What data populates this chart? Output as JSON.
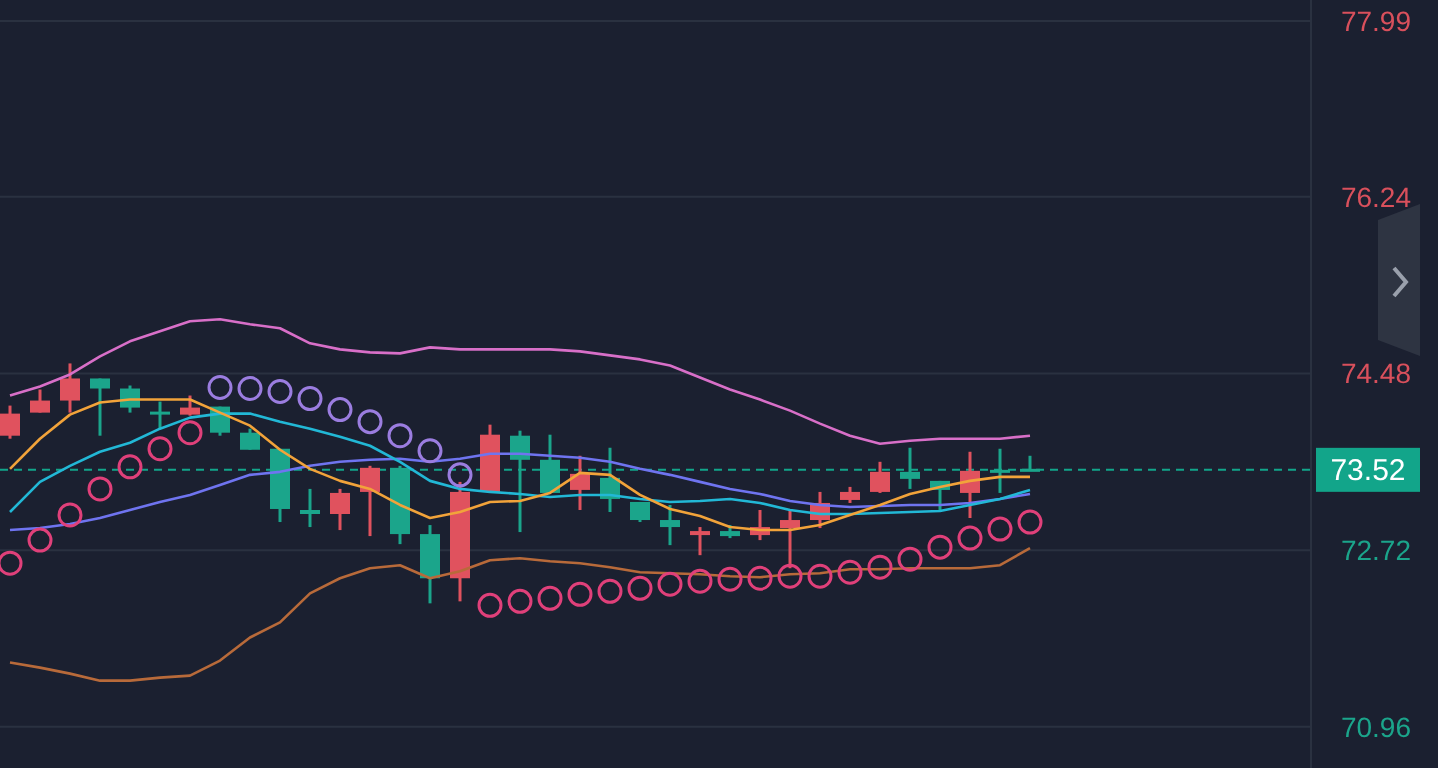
{
  "chart_data": {
    "type": "candlestick",
    "categories": [
      null,
      null,
      null,
      null,
      null,
      null,
      null,
      null,
      null,
      null,
      null,
      null,
      null,
      null,
      null,
      null,
      null,
      null,
      null,
      null,
      null,
      null,
      null,
      null,
      null,
      null,
      null,
      null,
      null,
      null,
      null,
      null,
      null,
      null,
      null
    ],
    "ohlc": [
      [
        73.86,
        74.16,
        73.83,
        74.08
      ],
      [
        74.09,
        74.32,
        74.09,
        74.21
      ],
      [
        74.21,
        74.58,
        74.09,
        74.43
      ],
      [
        74.43,
        74.43,
        73.86,
        74.33
      ],
      [
        74.33,
        74.36,
        74.09,
        74.14
      ],
      [
        74.1,
        74.2,
        73.93,
        74.08
      ],
      [
        74.07,
        74.26,
        74.06,
        74.14
      ],
      [
        74.15,
        74.15,
        73.86,
        73.89
      ],
      [
        73.89,
        73.93,
        73.72,
        73.72
      ],
      [
        73.73,
        73.73,
        73.0,
        73.13
      ],
      [
        73.12,
        73.33,
        72.95,
        73.08
      ],
      [
        73.08,
        73.33,
        72.92,
        73.29
      ],
      [
        73.3,
        73.56,
        72.86,
        73.54
      ],
      [
        73.54,
        73.56,
        72.78,
        72.88
      ],
      [
        72.88,
        72.97,
        72.19,
        72.44
      ],
      [
        72.44,
        73.4,
        72.21,
        73.3
      ],
      [
        73.3,
        73.97,
        73.3,
        73.87
      ],
      [
        73.86,
        73.91,
        72.9,
        73.62
      ],
      [
        73.62,
        73.87,
        73.29,
        73.29
      ],
      [
        73.32,
        73.66,
        73.12,
        73.48
      ],
      [
        73.44,
        73.74,
        73.1,
        73.23
      ],
      [
        73.2,
        73.2,
        73.0,
        73.02
      ],
      [
        73.02,
        73.17,
        72.77,
        72.95
      ],
      [
        72.87,
        72.95,
        72.67,
        72.91
      ],
      [
        72.91,
        72.97,
        72.84,
        72.86
      ],
      [
        72.87,
        73.12,
        72.82,
        72.95
      ],
      [
        72.94,
        73.12,
        72.54,
        73.02
      ],
      [
        73.02,
        73.3,
        72.94,
        73.19
      ],
      [
        73.22,
        73.35,
        73.19,
        73.3
      ],
      [
        73.3,
        73.6,
        73.29,
        73.5
      ],
      [
        73.5,
        73.74,
        73.33,
        73.43
      ],
      [
        73.41,
        73.41,
        73.1,
        73.32
      ],
      [
        73.29,
        73.7,
        73.04,
        73.51
      ],
      [
        73.52,
        73.73,
        73.29,
        73.49
      ],
      [
        73.53,
        73.66,
        73.52,
        73.52
      ]
    ],
    "colors": [
      "#e0525e",
      "#e0525e",
      "#e0525e",
      "#1ba58b",
      "#1ba58b",
      "#1ba58b",
      "#e0525e",
      "#1ba58b",
      "#1ba58b",
      "#1ba58b",
      "#1ba58b",
      "#e0525e",
      "#e0525e",
      "#1ba58b",
      "#1ba58b",
      "#e0525e",
      "#e0525e",
      "#1ba58b",
      "#1ba58b",
      "#e0525e",
      "#1ba58b",
      "#1ba58b",
      "#1ba58b",
      "#e0525e",
      "#1ba58b",
      "#e0525e",
      "#e0525e",
      "#e0525e",
      "#e0525e",
      "#e0525e",
      "#1ba58b",
      "#1ba58b",
      "#e0525e",
      "#1ba58b",
      "#1ba58b"
    ],
    "series": [
      {
        "type": "line",
        "color": "#d86fc8",
        "values": [
          74.26,
          74.35,
          74.47,
          74.65,
          74.8,
          74.9,
          75.0,
          75.02,
          74.97,
          74.93,
          74.78,
          74.72,
          74.69,
          74.68,
          74.74,
          74.72,
          74.72,
          74.72,
          74.72,
          74.7,
          74.66,
          74.62,
          74.56,
          74.44,
          74.32,
          74.22,
          74.11,
          73.98,
          73.86,
          73.78,
          73.81,
          73.83,
          73.83,
          73.83,
          73.86
        ]
      },
      {
        "type": "line",
        "color": "#b86a3a",
        "values": [
          71.6,
          71.55,
          71.49,
          71.42,
          71.42,
          71.45,
          71.47,
          71.62,
          71.85,
          72.0,
          72.29,
          72.44,
          72.54,
          72.57,
          72.44,
          72.51,
          72.62,
          72.64,
          72.61,
          72.59,
          72.55,
          72.5,
          72.49,
          72.48,
          72.46,
          72.45,
          72.48,
          72.49,
          72.53,
          72.53,
          72.54,
          72.54,
          72.54,
          72.57,
          72.74
        ]
      },
      {
        "type": "line",
        "color": "#6f74f0",
        "values": [
          72.92,
          72.94,
          72.98,
          73.04,
          73.12,
          73.2,
          73.27,
          73.37,
          73.47,
          73.5,
          73.56,
          73.6,
          73.62,
          73.63,
          73.6,
          73.63,
          73.68,
          73.68,
          73.66,
          73.64,
          73.6,
          73.53,
          73.47,
          73.4,
          73.33,
          73.28,
          73.21,
          73.17,
          73.15,
          73.16,
          73.17,
          73.17,
          73.19,
          73.23,
          73.28
        ]
      },
      {
        "type": "line",
        "color": "#22b8d6",
        "values": [
          73.1,
          73.4,
          73.56,
          73.7,
          73.79,
          73.93,
          74.04,
          74.08,
          74.08,
          74.0,
          73.93,
          73.85,
          73.76,
          73.6,
          73.41,
          73.33,
          73.3,
          73.28,
          73.25,
          73.27,
          73.27,
          73.23,
          73.2,
          73.21,
          73.23,
          73.19,
          73.12,
          73.08,
          73.08,
          73.09,
          73.1,
          73.11,
          73.17,
          73.23,
          73.32
        ]
      },
      {
        "type": "line",
        "color": "#f2a33a",
        "values": [
          73.53,
          73.83,
          74.07,
          74.19,
          74.22,
          74.22,
          74.22,
          74.09,
          73.96,
          73.72,
          73.53,
          73.41,
          73.33,
          73.17,
          73.04,
          73.1,
          73.2,
          73.21,
          73.29,
          73.49,
          73.47,
          73.27,
          73.13,
          73.06,
          72.95,
          72.92,
          72.92,
          72.97,
          73.07,
          73.17,
          73.28,
          73.35,
          73.41,
          73.45,
          73.45
        ]
      },
      {
        "type": "scatter",
        "marker": "circle",
        "color": "#9b7de0",
        "values": [
          null,
          null,
          null,
          null,
          null,
          null,
          null,
          74.34,
          74.33,
          74.3,
          74.23,
          74.12,
          74.0,
          73.86,
          73.71,
          73.47,
          null,
          null,
          null,
          null,
          null,
          null,
          null,
          null,
          null,
          null,
          null,
          null,
          null,
          null,
          null,
          null,
          null,
          null,
          null
        ]
      },
      {
        "type": "scatter",
        "marker": "circle",
        "color": "#e0407a",
        "values": [
          72.59,
          72.82,
          73.07,
          73.33,
          73.55,
          73.73,
          73.89,
          null,
          null,
          null,
          null,
          null,
          null,
          null,
          null,
          null,
          72.17,
          72.21,
          72.24,
          72.28,
          72.31,
          72.34,
          72.38,
          72.41,
          72.43,
          72.44,
          72.46,
          72.46,
          72.5,
          72.55,
          72.63,
          72.75,
          72.84,
          72.93,
          73.0
        ]
      }
    ],
    "ylim": [
      70.55,
      78.2
    ],
    "yticks": [
      70.96,
      72.72,
      74.48,
      76.24,
      77.99
    ],
    "grid": "y",
    "tick_labels": "y",
    "ref_lines": [
      {
        "axis": "y",
        "value": 73.52,
        "label": "73.52",
        "color": "#12a58a",
        "line_style": "dashed"
      }
    ]
  }
}
